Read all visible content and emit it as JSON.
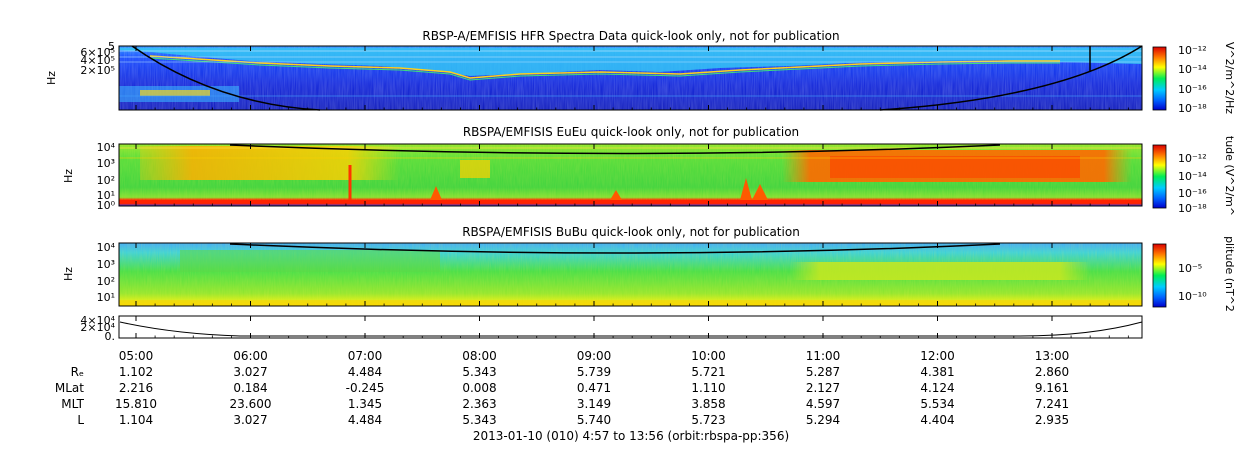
{
  "chart_data": [
    {
      "type": "heatmap",
      "title": "RBSP-A/EMFISIS  HFR Spectra Data quick-look only, not for publication",
      "ylabel": "Hz",
      "yticks": [
        "5",
        "6×10⁵",
        "4×10⁵",
        "2×10⁵"
      ],
      "colorbar": {
        "label": "V^2/m^2/Hz",
        "ticks": [
          "10⁻¹²",
          "10⁻¹⁴",
          "10⁻¹⁶",
          "10⁻¹⁸"
        ]
      }
    },
    {
      "type": "heatmap",
      "title": "RBSPA/EMFISIS  EuEu quick-look only, not for publication",
      "ylabel": "Hz",
      "yticks": [
        "10⁴",
        "10³",
        "10²",
        "10¹",
        "10⁰"
      ],
      "colorbar": {
        "label": "tude (V^2/m^",
        "ticks": [
          "10⁻¹²",
          "10⁻¹⁴",
          "10⁻¹⁶",
          "10⁻¹⁸"
        ]
      }
    },
    {
      "type": "heatmap",
      "title": "RBSPA/EMFISIS  BuBu quick-look only, not for publication",
      "ylabel": "Hz",
      "yticks": [
        "10⁴",
        "10³",
        "10²",
        "10¹"
      ],
      "colorbar": {
        "label": "plitude (nT^2",
        "ticks": [
          "10⁻⁵",
          "10⁻¹⁰"
        ]
      }
    },
    {
      "type": "line",
      "yticks": [
        "4×10⁴",
        "2×10⁴",
        "0."
      ],
      "ylim": [
        0,
        40000
      ]
    }
  ],
  "time_axis": {
    "times": [
      "05:00",
      "06:00",
      "07:00",
      "08:00",
      "09:00",
      "10:00",
      "11:00",
      "12:00",
      "13:00"
    ],
    "rows": [
      {
        "label": "Rₑ",
        "values": [
          "1.102",
          "3.027",
          "4.484",
          "5.343",
          "5.739",
          "5.721",
          "5.287",
          "4.381",
          "2.860"
        ]
      },
      {
        "label": "MLat",
        "values": [
          "2.216",
          "0.184",
          "-0.245",
          "0.008",
          "0.471",
          "1.110",
          "2.127",
          "4.124",
          "9.161"
        ]
      },
      {
        "label": "MLT",
        "values": [
          "15.810",
          "23.600",
          "1.345",
          "2.363",
          "3.149",
          "3.858",
          "4.597",
          "5.534",
          "7.241"
        ]
      },
      {
        "label": "L",
        "values": [
          "1.104",
          "3.027",
          "4.484",
          "5.343",
          "5.740",
          "5.723",
          "5.294",
          "4.404",
          "2.935"
        ]
      }
    ]
  },
  "footer": "2013-01-10 (010) 4:57 to 13:56 (orbit:rbspa-pp:356)"
}
